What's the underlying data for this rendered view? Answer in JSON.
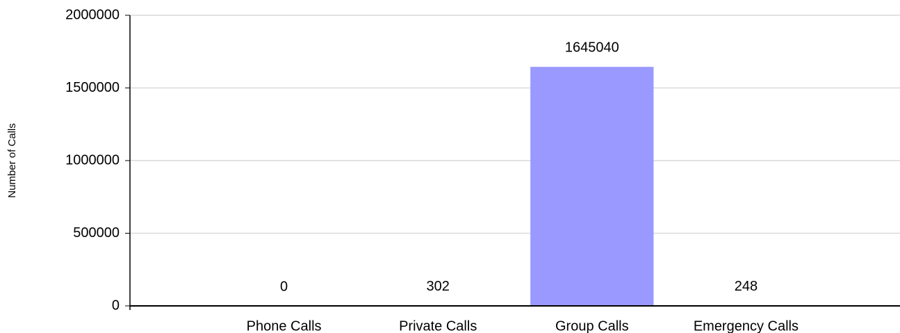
{
  "chart_data": {
    "type": "bar",
    "y_axis_label": "Number of Calls",
    "categories": [
      "Phone Calls",
      "Private Calls",
      "Group Calls",
      "Emergency Calls"
    ],
    "values": [
      0,
      302,
      1645040,
      248
    ],
    "color": "#9999ff",
    "ylim": [
      0,
      2000000
    ],
    "yticks": [
      0,
      500000,
      1000000,
      1500000,
      2000000
    ],
    "grid": true
  }
}
